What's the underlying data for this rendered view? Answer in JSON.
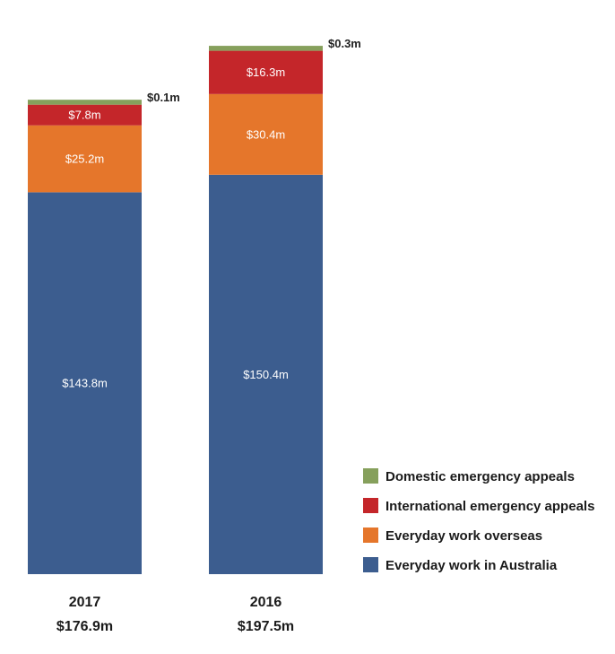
{
  "chart_data": {
    "type": "bar",
    "stacked": true,
    "categories": [
      "2017",
      "2016"
    ],
    "category_totals": [
      "$176.9m",
      "$197.5m"
    ],
    "series": [
      {
        "name": "Everyday work in Australia",
        "color": "#3c5d8f",
        "values": [
          143.8,
          150.4
        ],
        "labels": [
          "$143.8m",
          "$150.4m"
        ]
      },
      {
        "name": "Everyday work overseas",
        "color": "#e5762b",
        "values": [
          25.2,
          30.4
        ],
        "labels": [
          "$25.2m",
          "$30.4m"
        ]
      },
      {
        "name": "International emergency appeals",
        "color": "#c4262a",
        "values": [
          7.8,
          16.3
        ],
        "labels": [
          "$7.8m",
          "$16.3m"
        ]
      },
      {
        "name": "Domestic emergency appeals",
        "color": "#86a05c",
        "values": [
          0.1,
          0.3
        ],
        "labels": [
          "$0.1m",
          "$0.3m"
        ]
      }
    ],
    "legend_order": [
      "Domestic emergency appeals",
      "International emergency appeals",
      "Everyday work overseas",
      "Everyday work in Australia"
    ],
    "legend_position": "bottom-right",
    "grid": false
  }
}
